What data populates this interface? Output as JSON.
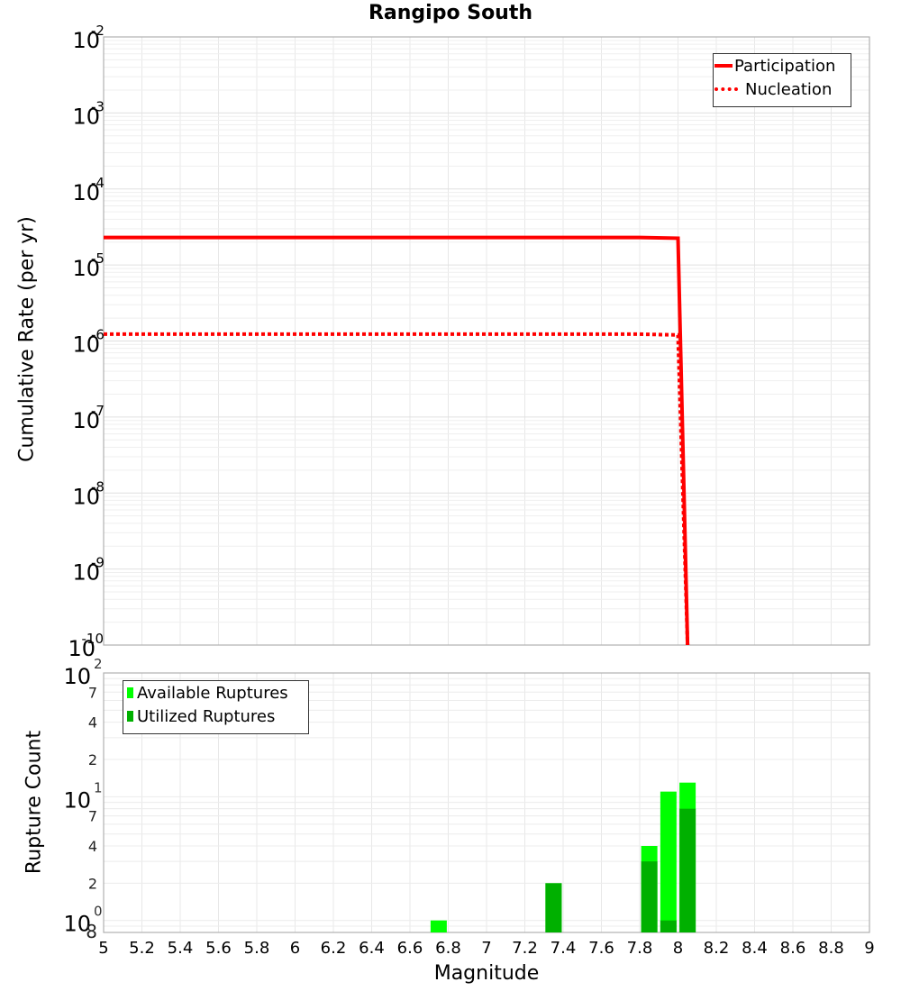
{
  "title": "Rangipo South",
  "top_plot": {
    "ylabel": "Cumulative Rate (per yr)",
    "y_ticks": [
      "10^-2",
      "10^-3",
      "10^-4",
      "10^-5",
      "10^-6",
      "10^-7",
      "10^-8",
      "10^-9",
      "10^-10"
    ],
    "legend": [
      {
        "label": "Participation",
        "style": "solid",
        "color": "#FF0000"
      },
      {
        "label": "Nucleation",
        "style": "dotted",
        "color": "#FF0000"
      }
    ]
  },
  "bottom_plot": {
    "ylabel": "Rupture Count",
    "xlabel": "Magnitude",
    "legend": [
      {
        "label": "Available Ruptures",
        "color": "#00FF00"
      },
      {
        "label": "Utilized Ruptures",
        "color": "#00B000"
      }
    ]
  },
  "chart_data": [
    {
      "type": "line",
      "title": "Rangipo South",
      "xlabel": "Magnitude",
      "ylabel": "Cumulative Rate (per yr)",
      "yscale": "log",
      "xlim": [
        5,
        9
      ],
      "ylim": [
        1e-10,
        0.01
      ],
      "grid": true,
      "legend_position": "top-right",
      "series": [
        {
          "name": "Participation",
          "color": "#FF0000",
          "style": "solid",
          "x": [
            5.0,
            7.8,
            8.0,
            8.05
          ],
          "y": [
            2.3e-05,
            2.3e-05,
            2.25e-05,
            1e-10
          ]
        },
        {
          "name": "Nucleation",
          "color": "#FF0000",
          "style": "dotted",
          "x": [
            5.0,
            7.8,
            8.0,
            8.05
          ],
          "y": [
            1.23e-06,
            1.23e-06,
            1.2e-06,
            1e-10
          ]
        }
      ]
    },
    {
      "type": "bar",
      "xlabel": "Magnitude",
      "ylabel": "Rupture Count",
      "yscale": "log",
      "xlim": [
        5,
        9
      ],
      "ylim": [
        0.8,
        100
      ],
      "x_ticks": [
        "5",
        "5.2",
        "5.4",
        "5.6",
        "5.8",
        "6",
        "6.2",
        "6.4",
        "6.6",
        "6.8",
        "7",
        "7.2",
        "7.4",
        "7.6",
        "7.8",
        "8",
        "8.2",
        "8.4",
        "8.6",
        "8.8",
        "9"
      ],
      "y_ticks_major": [
        "10^0",
        "10^1",
        "10^2"
      ],
      "y_ticks_minor": [
        "8",
        "2",
        "4",
        "7",
        "2",
        "4",
        "7"
      ],
      "grid": true,
      "legend_position": "top-left",
      "categories": [
        6.75,
        7.35,
        7.85,
        7.95,
        8.05
      ],
      "series": [
        {
          "name": "Available Ruptures",
          "color": "#00FF00",
          "values": [
            1,
            2,
            4,
            11,
            13
          ]
        },
        {
          "name": "Utilized Ruptures",
          "color": "#00B000",
          "values": [
            0,
            2,
            3,
            1,
            8
          ]
        }
      ]
    }
  ]
}
